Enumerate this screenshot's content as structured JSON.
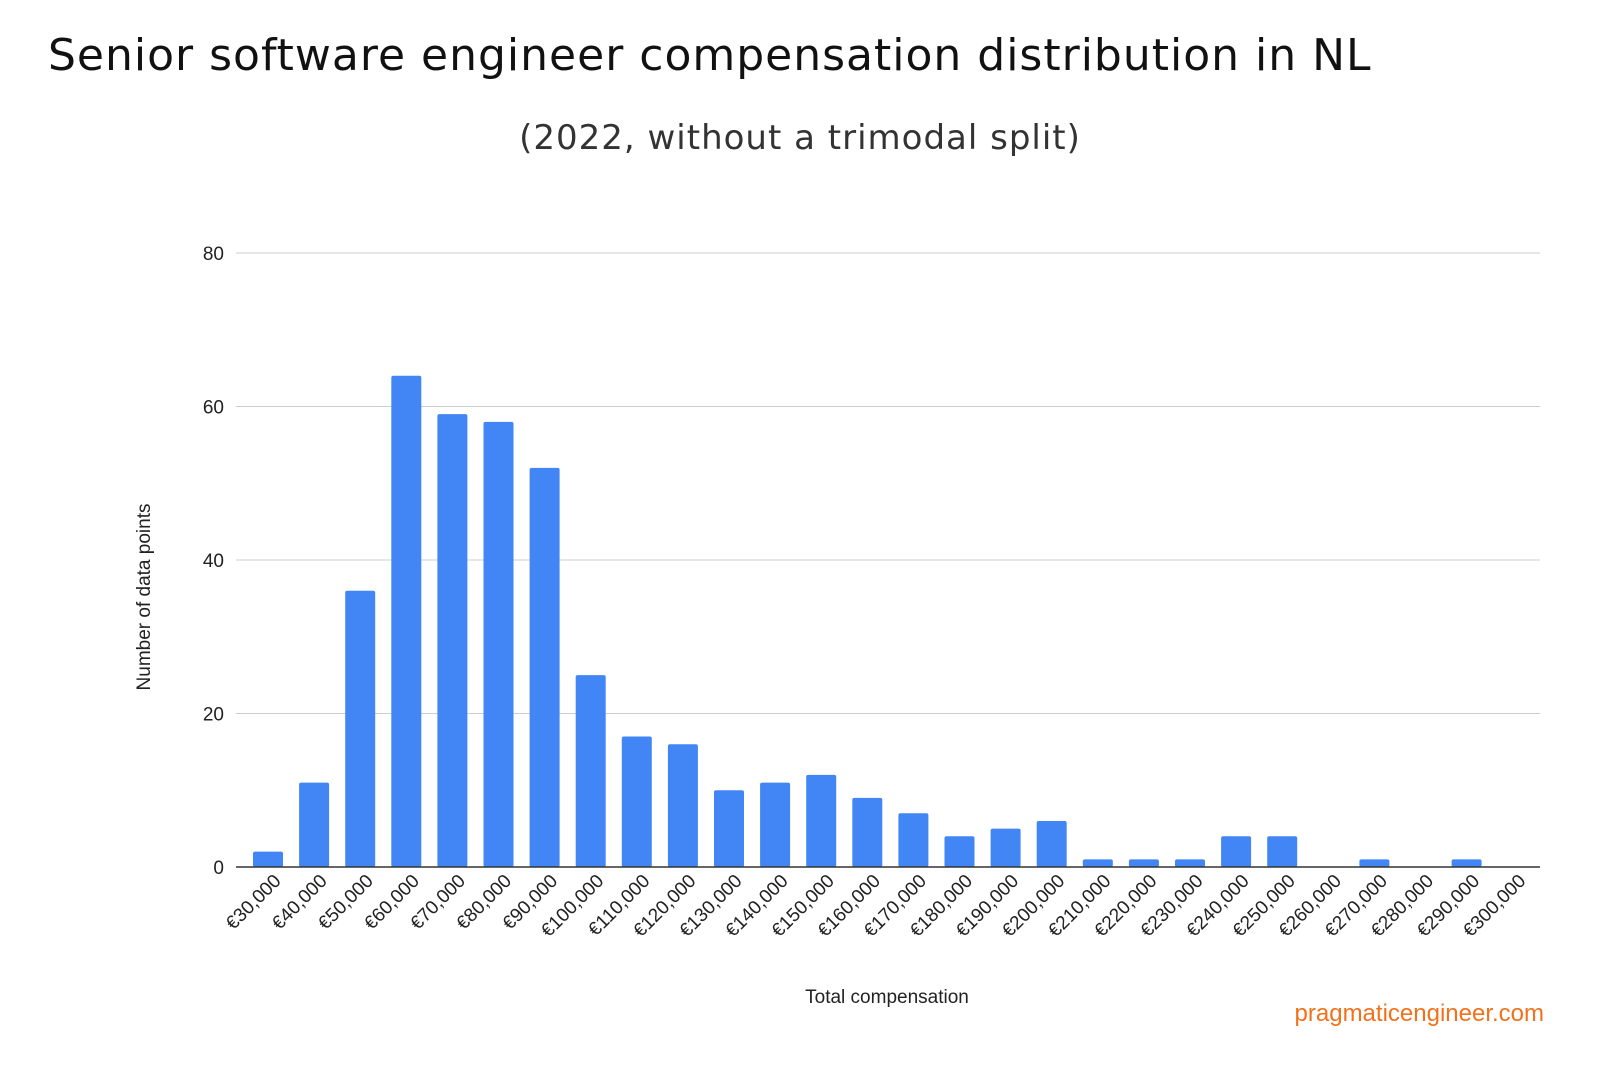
{
  "title": "Senior software engineer compensation distribution in NL",
  "subtitle": "(2022, without a trimodal split)",
  "watermark": "pragmaticengineer.com",
  "colors": {
    "bar": "#4285f4",
    "grid": "#cccccc",
    "accent": "#f2711c"
  },
  "chart_data": {
    "type": "bar",
    "title": "Senior software engineer compensation distribution in NL",
    "subtitle": "(2022, without a trimodal split)",
    "xlabel": "Total compensation",
    "ylabel": "Number of data points",
    "ylim": [
      0,
      80
    ],
    "yticks": [
      0,
      20,
      40,
      60,
      80
    ],
    "grid": true,
    "categories": [
      "€30,000",
      "€40,000",
      "€50,000",
      "€60,000",
      "€70,000",
      "€80,000",
      "€90,000",
      "€100,000",
      "€110,000",
      "€120,000",
      "€130,000",
      "€140,000",
      "€150,000",
      "€160,000",
      "€170,000",
      "€180,000",
      "€190,000",
      "€200,000",
      "€210,000",
      "€220,000",
      "€230,000",
      "€240,000",
      "€250,000",
      "€260,000",
      "€270,000",
      "€280,000",
      "€290,000",
      "€300,000"
    ],
    "values": [
      2,
      11,
      36,
      64,
      59,
      58,
      52,
      25,
      17,
      16,
      10,
      11,
      12,
      9,
      7,
      4,
      5,
      6,
      1,
      1,
      1,
      4,
      4,
      0,
      1,
      0,
      1,
      0
    ]
  }
}
